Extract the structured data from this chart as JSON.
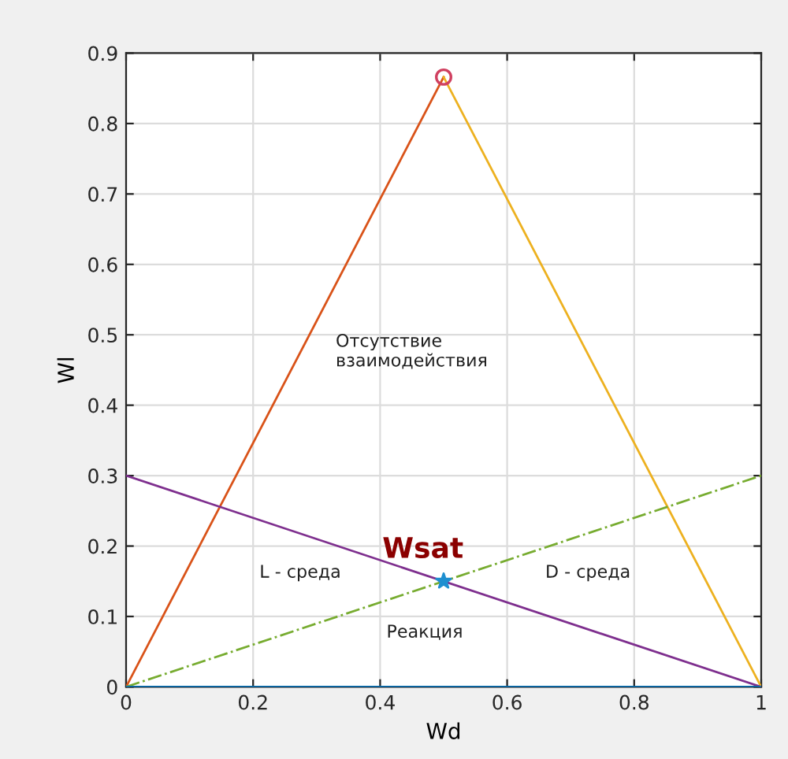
{
  "chart_data": {
    "type": "line",
    "xlabel": "Wd",
    "ylabel": "Wl",
    "xlim": [
      0,
      1
    ],
    "ylim": [
      0,
      0.9
    ],
    "xticks": [
      0,
      0.2,
      0.4,
      0.6,
      0.8,
      1
    ],
    "yticks": [
      0,
      0.1,
      0.2,
      0.3,
      0.4,
      0.5,
      0.6,
      0.7,
      0.8,
      0.9
    ],
    "grid": true,
    "series": [
      {
        "color": "#d95319",
        "x": [
          0,
          0.5
        ],
        "values": [
          0,
          0.866
        ]
      },
      {
        "color": "#edb120",
        "x": [
          0.5,
          1
        ],
        "values": [
          0.866,
          0
        ]
      },
      {
        "color": "#7e2f8e",
        "x": [
          0,
          1
        ],
        "values": [
          0.3,
          0
        ]
      },
      {
        "color": "#77ac30",
        "x": [
          0,
          1
        ],
        "values": [
          0,
          0.3
        ],
        "line_style": "dashdot"
      },
      {
        "color": "#0072bd",
        "x": [
          0,
          1
        ],
        "values": [
          0,
          0
        ]
      },
      {
        "type": "scatter",
        "color": "#d04060",
        "x": [
          0.5
        ],
        "values": [
          0.866
        ],
        "marker": "circle"
      },
      {
        "type": "scatter",
        "color": "#1f8fd0",
        "x": [
          0.5
        ],
        "values": [
          0.15
        ],
        "marker": "star"
      }
    ],
    "annotations": [
      "Отсутствие\nвзаимодействия",
      {
        "text": "Wsat",
        "x": 0.5,
        "y": 0.15
      },
      "L - среда",
      "D - среда",
      "Реакция"
    ]
  }
}
